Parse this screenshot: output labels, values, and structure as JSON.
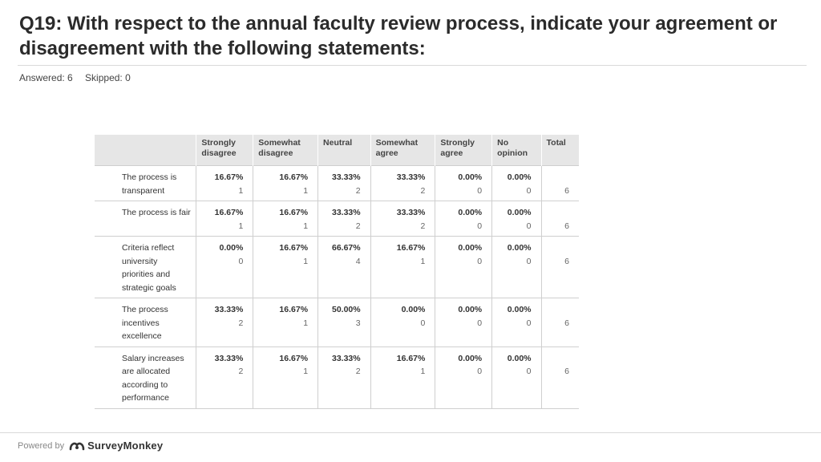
{
  "question": {
    "title": "Q19: With respect to the annual faculty review process, indicate your agreement or disagreement with the following statements:",
    "answered": "Answered: 6",
    "skipped": "Skipped: 0"
  },
  "table": {
    "columns": [
      "Strongly disagree",
      "Somewhat disagree",
      "Neutral",
      "Somewhat agree",
      "Strongly agree",
      "No opinion",
      "Total"
    ],
    "rows": [
      {
        "label": "The process is transparent",
        "cells": [
          {
            "pct": "16.67%",
            "count": "1"
          },
          {
            "pct": "16.67%",
            "count": "1"
          },
          {
            "pct": "33.33%",
            "count": "2"
          },
          {
            "pct": "33.33%",
            "count": "2"
          },
          {
            "pct": "0.00%",
            "count": "0"
          },
          {
            "pct": "0.00%",
            "count": "0"
          }
        ],
        "total": "6"
      },
      {
        "label": "The process is fair",
        "cells": [
          {
            "pct": "16.67%",
            "count": "1"
          },
          {
            "pct": "16.67%",
            "count": "1"
          },
          {
            "pct": "33.33%",
            "count": "2"
          },
          {
            "pct": "33.33%",
            "count": "2"
          },
          {
            "pct": "0.00%",
            "count": "0"
          },
          {
            "pct": "0.00%",
            "count": "0"
          }
        ],
        "total": "6"
      },
      {
        "label": "Criteria reflect university priorities and strategic goals",
        "cells": [
          {
            "pct": "0.00%",
            "count": "0"
          },
          {
            "pct": "16.67%",
            "count": "1"
          },
          {
            "pct": "66.67%",
            "count": "4"
          },
          {
            "pct": "16.67%",
            "count": "1"
          },
          {
            "pct": "0.00%",
            "count": "0"
          },
          {
            "pct": "0.00%",
            "count": "0"
          }
        ],
        "total": "6"
      },
      {
        "label": "The process incentives excellence",
        "cells": [
          {
            "pct": "33.33%",
            "count": "2"
          },
          {
            "pct": "16.67%",
            "count": "1"
          },
          {
            "pct": "50.00%",
            "count": "3"
          },
          {
            "pct": "0.00%",
            "count": "0"
          },
          {
            "pct": "0.00%",
            "count": "0"
          },
          {
            "pct": "0.00%",
            "count": "0"
          }
        ],
        "total": "6"
      },
      {
        "label": "Salary increases are allocated according to performance",
        "cells": [
          {
            "pct": "33.33%",
            "count": "2"
          },
          {
            "pct": "16.67%",
            "count": "1"
          },
          {
            "pct": "33.33%",
            "count": "2"
          },
          {
            "pct": "16.67%",
            "count": "1"
          },
          {
            "pct": "0.00%",
            "count": "0"
          },
          {
            "pct": "0.00%",
            "count": "0"
          }
        ],
        "total": "6"
      }
    ]
  },
  "footer": {
    "powered_by": "Powered by",
    "brand": "SurveyMonkey",
    "brand_icon": "surveymonkey-logo-icon",
    "brand_color": "#333333",
    "logo_color": "#333333"
  }
}
